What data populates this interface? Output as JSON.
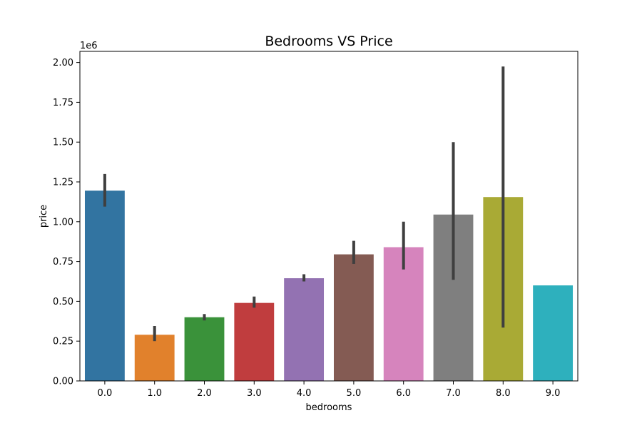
{
  "chart_data": {
    "type": "bar",
    "title": "Bedrooms VS Price",
    "xlabel": "bedrooms",
    "ylabel": "price",
    "y_offset_label": "1e6",
    "ylim": [
      0,
      2.07
    ],
    "yticks": [
      {
        "value": 0,
        "label": "0.00"
      },
      {
        "value": 0.25,
        "label": "0.25"
      },
      {
        "value": 0.5,
        "label": "0.50"
      },
      {
        "value": 0.75,
        "label": "0.75"
      },
      {
        "value": 1.0,
        "label": "1.00"
      },
      {
        "value": 1.25,
        "label": "1.25"
      },
      {
        "value": 1.5,
        "label": "1.50"
      },
      {
        "value": 1.75,
        "label": "1.75"
      },
      {
        "value": 2.0,
        "label": "2.00"
      }
    ],
    "categories": [
      "0.0",
      "1.0",
      "2.0",
      "3.0",
      "4.0",
      "5.0",
      "6.0",
      "7.0",
      "8.0",
      "9.0"
    ],
    "values": [
      1.195,
      0.29,
      0.4,
      0.49,
      0.645,
      0.795,
      0.84,
      1.045,
      1.155,
      0.6
    ],
    "error_low": [
      1.095,
      0.25,
      0.38,
      0.46,
      0.625,
      0.735,
      0.7,
      0.635,
      0.335,
      null
    ],
    "error_high": [
      1.3,
      0.345,
      0.42,
      0.53,
      0.67,
      0.88,
      1.0,
      1.5,
      1.975,
      null
    ],
    "colors": [
      "#3274a1",
      "#e1812c",
      "#3a923a",
      "#c03d3e",
      "#9372b2",
      "#845b53",
      "#d684bd",
      "#7f7f7f",
      "#a9aa35",
      "#2eb0bd"
    ],
    "grid": false,
    "legend": "none"
  }
}
